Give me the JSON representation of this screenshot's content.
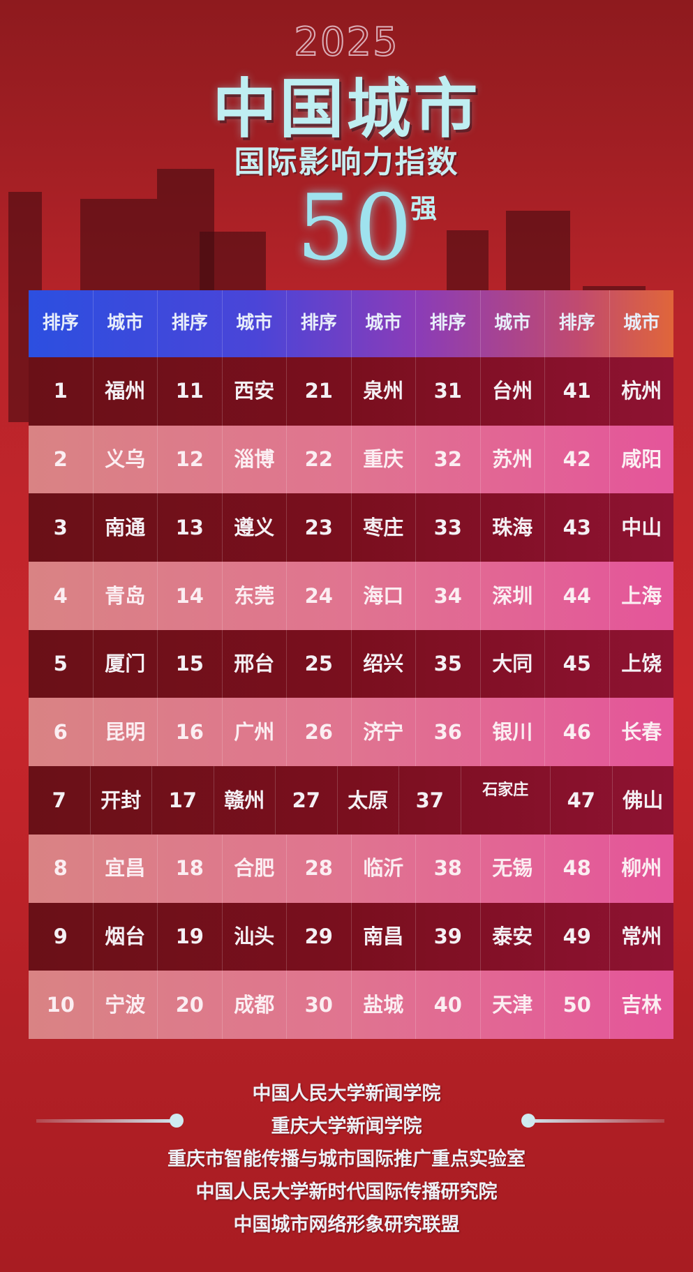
{
  "title": {
    "year": "2025",
    "main": "中国城市",
    "subtitle": "国际影响力指数",
    "number": "50",
    "suffix": "强"
  },
  "table": {
    "headers": [
      "排序",
      "城市",
      "排序",
      "城市",
      "排序",
      "城市",
      "排序",
      "城市",
      "排序",
      "城市"
    ],
    "rows": [
      [
        "1",
        "福州",
        "11",
        "西安",
        "21",
        "泉州",
        "31",
        "台州",
        "41",
        "杭州"
      ],
      [
        "2",
        "义乌",
        "12",
        "淄博",
        "22",
        "重庆",
        "32",
        "苏州",
        "42",
        "咸阳"
      ],
      [
        "3",
        "南通",
        "13",
        "遵义",
        "23",
        "枣庄",
        "33",
        "珠海",
        "43",
        "中山"
      ],
      [
        "4",
        "青岛",
        "14",
        "东莞",
        "24",
        "海口",
        "34",
        "深圳",
        "44",
        "上海"
      ],
      [
        "5",
        "厦门",
        "15",
        "邢台",
        "25",
        "绍兴",
        "35",
        "大同",
        "45",
        "上饶"
      ],
      [
        "6",
        "昆明",
        "16",
        "广州",
        "26",
        "济宁",
        "36",
        "银川",
        "46",
        "长春"
      ],
      [
        "7",
        "开封",
        "17",
        "赣州",
        "27",
        "太原",
        "37",
        "石家庄",
        "47",
        "佛山"
      ],
      [
        "8",
        "宜昌",
        "18",
        "合肥",
        "28",
        "临沂",
        "38",
        "无锡",
        "48",
        "柳州"
      ],
      [
        "9",
        "烟台",
        "19",
        "汕头",
        "29",
        "南昌",
        "39",
        "泰安",
        "49",
        "常州"
      ],
      [
        "10",
        "宁波",
        "20",
        "成都",
        "30",
        "盐城",
        "40",
        "天津",
        "50",
        "吉林"
      ]
    ]
  },
  "footer": {
    "organizers": [
      "中国人民大学新闻学院",
      "重庆大学新闻学院",
      "重庆市智能传播与城市国际推广重点实验室",
      "中国人民大学新时代国际传播研究院",
      "中国城市网络形象研究联盟"
    ]
  },
  "colors": {
    "background": "#c8262c",
    "title": "#bfeef2",
    "header_start": "#2c4fe0",
    "header_end": "#e0663a",
    "row_dark": "#7a0f1e",
    "row_pink": "#e07490"
  }
}
